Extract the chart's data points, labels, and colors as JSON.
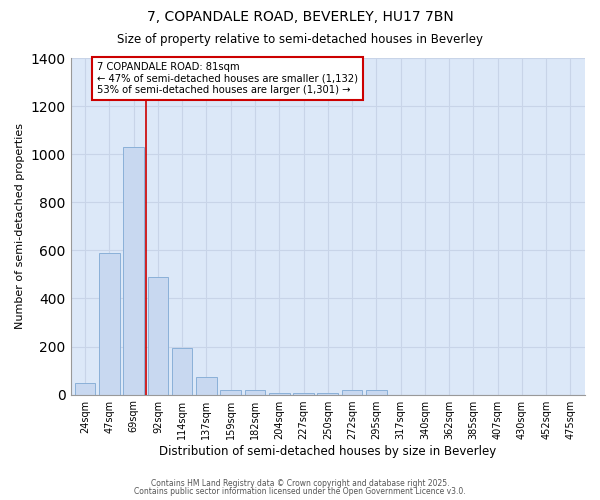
{
  "title_line1": "7, COPANDALE ROAD, BEVERLEY, HU17 7BN",
  "title_line2": "Size of property relative to semi-detached houses in Beverley",
  "xlabel": "Distribution of semi-detached houses by size in Beverley",
  "ylabel": "Number of semi-detached properties",
  "categories": [
    "24sqm",
    "47sqm",
    "69sqm",
    "92sqm",
    "114sqm",
    "137sqm",
    "159sqm",
    "182sqm",
    "204sqm",
    "227sqm",
    "250sqm",
    "272sqm",
    "295sqm",
    "317sqm",
    "340sqm",
    "362sqm",
    "385sqm",
    "407sqm",
    "430sqm",
    "452sqm",
    "475sqm"
  ],
  "values": [
    50,
    590,
    1030,
    490,
    195,
    75,
    20,
    20,
    5,
    5,
    5,
    20,
    20,
    0,
    0,
    0,
    0,
    0,
    0,
    0,
    0
  ],
  "bar_color": "#c8d8f0",
  "bar_edge_color": "#8ab0d8",
  "bar_linewidth": 0.7,
  "vline_x": 2.5,
  "vline_color": "#cc0000",
  "vline_linewidth": 1.2,
  "annotation_title": "7 COPANDALE ROAD: 81sqm",
  "annotation_line1": "← 47% of semi-detached houses are smaller (1,132)",
  "annotation_line2": "53% of semi-detached houses are larger (1,301) →",
  "annotation_box_color": "#cc0000",
  "ylim": [
    0,
    1400
  ],
  "yticks": [
    0,
    200,
    400,
    600,
    800,
    1000,
    1200,
    1400
  ],
  "grid_color": "#c8d4e8",
  "background_color": "#dce8f8",
  "footer_line1": "Contains HM Land Registry data © Crown copyright and database right 2025.",
  "footer_line2": "Contains public sector information licensed under the Open Government Licence v3.0."
}
